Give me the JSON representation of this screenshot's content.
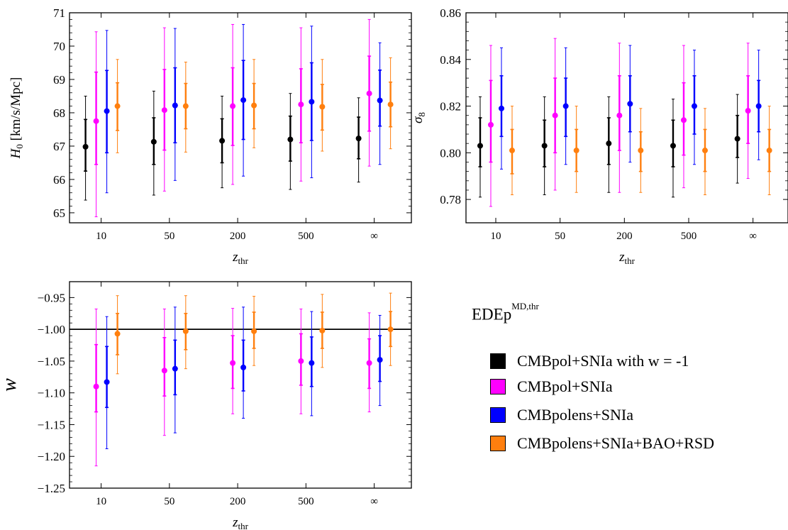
{
  "legend": {
    "title": "EDEp",
    "title_sup": "MD,thr",
    "entries": [
      {
        "label": "CMBpol+SNIa with w = -1",
        "color": "#000000"
      },
      {
        "label": "CMBpol+SNIa",
        "color": "#ff00ff"
      },
      {
        "label": "CMBpolens+SNIa",
        "color": "#0000ff"
      },
      {
        "label": "CMBpolens+SNIa+BAO+RSD",
        "color": "#ff7f0e"
      }
    ]
  },
  "chart_data": [
    {
      "type": "scatter",
      "title": "",
      "xlabel_main": "z",
      "xlabel_sub": "thr",
      "ylabel_main": "H",
      "ylabel_sub": "0",
      "ylabel_rest": " [km/s/Mpc]",
      "categories": [
        "10",
        "50",
        "200",
        "500",
        "∞"
      ],
      "ylim": [
        64.7,
        71
      ],
      "yticks": [
        "65",
        "66",
        "67",
        "68",
        "69",
        "70",
        "71"
      ],
      "series": [
        {
          "name": "CMBpol+SNIa with w = -1",
          "color": "#000000",
          "values": [
            66.98,
            67.13,
            67.16,
            67.2,
            67.23
          ],
          "err1_low": [
            66.25,
            66.45,
            66.5,
            66.55,
            66.62
          ],
          "err1_high": [
            67.8,
            67.85,
            67.82,
            67.9,
            67.87
          ],
          "err2_low": [
            65.38,
            65.53,
            65.75,
            65.7,
            65.92
          ],
          "err2_high": [
            68.5,
            68.65,
            68.5,
            68.58,
            68.45
          ]
        },
        {
          "name": "CMBpol+SNIa",
          "color": "#ff00ff",
          "values": [
            67.75,
            68.08,
            68.2,
            68.25,
            68.58
          ],
          "err1_low": [
            66.45,
            66.88,
            67.02,
            67.1,
            67.45
          ],
          "err1_high": [
            69.22,
            69.3,
            69.35,
            69.32,
            69.7
          ],
          "err2_low": [
            64.88,
            65.65,
            65.85,
            65.95,
            66.4
          ],
          "err2_high": [
            70.43,
            70.55,
            70.65,
            70.55,
            70.8
          ]
        },
        {
          "name": "CMBpolens+SNIa",
          "color": "#0000ff",
          "values": [
            68.05,
            68.22,
            68.38,
            68.33,
            68.37
          ],
          "err1_low": [
            66.8,
            67.1,
            67.2,
            67.17,
            67.6
          ],
          "err1_high": [
            69.27,
            69.35,
            69.57,
            69.5,
            69.28
          ],
          "err2_low": [
            65.6,
            65.97,
            66.1,
            66.05,
            66.45
          ],
          "err2_high": [
            70.47,
            70.53,
            70.65,
            70.6,
            70.1
          ]
        },
        {
          "name": "CMBpolens+SNIa+BAO+RSD",
          "color": "#ff7f0e",
          "values": [
            68.2,
            68.2,
            68.22,
            68.18,
            68.25
          ],
          "err1_low": [
            67.47,
            67.52,
            67.52,
            67.48,
            67.58
          ],
          "err1_high": [
            68.9,
            68.88,
            68.88,
            68.85,
            68.92
          ],
          "err2_low": [
            66.8,
            66.82,
            66.95,
            66.85,
            66.92
          ],
          "err2_high": [
            69.6,
            69.52,
            69.6,
            69.6,
            69.65
          ]
        }
      ]
    },
    {
      "type": "scatter",
      "title": "",
      "xlabel_main": "z",
      "xlabel_sub": "thr",
      "ylabel_main": "σ",
      "ylabel_sub": "8",
      "ylabel_rest": "",
      "categories": [
        "10",
        "50",
        "200",
        "500",
        "∞"
      ],
      "ylim": [
        0.77,
        0.86
      ],
      "yticks": [
        "0.78",
        "0.80",
        "0.82",
        "0.84",
        "0.86"
      ],
      "series": [
        {
          "name": "CMBpol+SNIa with w = -1",
          "color": "#000000",
          "values": [
            0.803,
            0.803,
            0.804,
            0.803,
            0.806
          ],
          "err1_low": [
            0.794,
            0.794,
            0.795,
            0.794,
            0.798
          ],
          "err1_high": [
            0.815,
            0.814,
            0.815,
            0.814,
            0.816
          ],
          "err2_low": [
            0.781,
            0.782,
            0.783,
            0.781,
            0.787
          ],
          "err2_high": [
            0.824,
            0.824,
            0.824,
            0.823,
            0.825
          ]
        },
        {
          "name": "CMBpol+SNIa",
          "color": "#ff00ff",
          "values": [
            0.812,
            0.816,
            0.816,
            0.814,
            0.818
          ],
          "err1_low": [
            0.796,
            0.8,
            0.801,
            0.799,
            0.804
          ],
          "err1_high": [
            0.831,
            0.832,
            0.833,
            0.83,
            0.833
          ],
          "err2_low": [
            0.777,
            0.784,
            0.783,
            0.785,
            0.789
          ],
          "err2_high": [
            0.846,
            0.849,
            0.847,
            0.846,
            0.847
          ]
        },
        {
          "name": "CMBpolens+SNIa",
          "color": "#0000ff",
          "values": [
            0.819,
            0.82,
            0.821,
            0.82,
            0.82
          ],
          "err1_low": [
            0.807,
            0.807,
            0.809,
            0.808,
            0.809
          ],
          "err1_high": [
            0.833,
            0.832,
            0.833,
            0.833,
            0.831
          ],
          "err2_low": [
            0.793,
            0.795,
            0.796,
            0.795,
            0.797
          ],
          "err2_high": [
            0.845,
            0.845,
            0.846,
            0.844,
            0.844
          ]
        },
        {
          "name": "CMBpolens+SNIa+BAO+RSD",
          "color": "#ff7f0e",
          "values": [
            0.801,
            0.801,
            0.801,
            0.801,
            0.801
          ],
          "err1_low": [
            0.791,
            0.792,
            0.792,
            0.792,
            0.792
          ],
          "err1_high": [
            0.81,
            0.81,
            0.809,
            0.81,
            0.81
          ],
          "err2_low": [
            0.782,
            0.783,
            0.783,
            0.782,
            0.782
          ],
          "err2_high": [
            0.82,
            0.82,
            0.819,
            0.819,
            0.82
          ]
        }
      ]
    },
    {
      "type": "scatter",
      "title": "",
      "xlabel_main": "z",
      "xlabel_sub": "thr",
      "ylabel_main": "w",
      "ylabel_sub": "",
      "ylabel_rest": "",
      "categories": [
        "10",
        "50",
        "200",
        "500",
        "∞"
      ],
      "ylim": [
        -1.25,
        -0.925
      ],
      "yticks": [
        "−0.95",
        "−1.00",
        "−1.05",
        "−1.10",
        "−1.15",
        "−1.20",
        "−1.25"
      ],
      "ytick_values": [
        -0.95,
        -1.0,
        -1.05,
        -1.1,
        -1.15,
        -1.2,
        -1.25
      ],
      "hline": -1.0,
      "series": [
        {
          "name": "CMBpol+SNIa",
          "color": "#ff00ff",
          "values": [
            -1.09,
            -1.065,
            -1.053,
            -1.05,
            -1.053
          ],
          "err1_low": [
            -1.13,
            -1.105,
            -1.093,
            -1.088,
            -1.093
          ],
          "err1_high": [
            -1.024,
            -1.013,
            -1.01,
            -1.007,
            -1.015
          ],
          "err2_low": [
            -1.215,
            -1.167,
            -1.133,
            -1.133,
            -1.13
          ],
          "err2_high": [
            -0.968,
            -0.968,
            -0.967,
            -0.968,
            -0.974
          ]
        },
        {
          "name": "CMBpolens+SNIa",
          "color": "#0000ff",
          "values": [
            -1.083,
            -1.062,
            -1.06,
            -1.053,
            -1.048
          ],
          "err1_low": [
            -1.123,
            -1.103,
            -1.097,
            -1.09,
            -1.082
          ],
          "err1_high": [
            -1.027,
            -1.017,
            -1.017,
            -1.012,
            -1.01
          ],
          "err2_low": [
            -1.188,
            -1.163,
            -1.14,
            -1.136,
            -1.12
          ],
          "err2_high": [
            -0.98,
            -0.965,
            -0.965,
            -0.972,
            -0.978
          ]
        },
        {
          "name": "CMBpolens+SNIa+BAO+RSD",
          "color": "#ff7f0e",
          "values": [
            -1.007,
            -1.003,
            -1.003,
            -1.002,
            -1.0
          ],
          "err1_low": [
            -1.04,
            -1.032,
            -1.03,
            -1.03,
            -1.027
          ],
          "err1_high": [
            -0.975,
            -0.975,
            -0.973,
            -0.973,
            -0.972
          ],
          "err2_low": [
            -1.07,
            -1.062,
            -1.057,
            -1.06,
            -1.057
          ],
          "err2_high": [
            -0.947,
            -0.947,
            -0.948,
            -0.945,
            -0.943
          ]
        }
      ]
    }
  ]
}
